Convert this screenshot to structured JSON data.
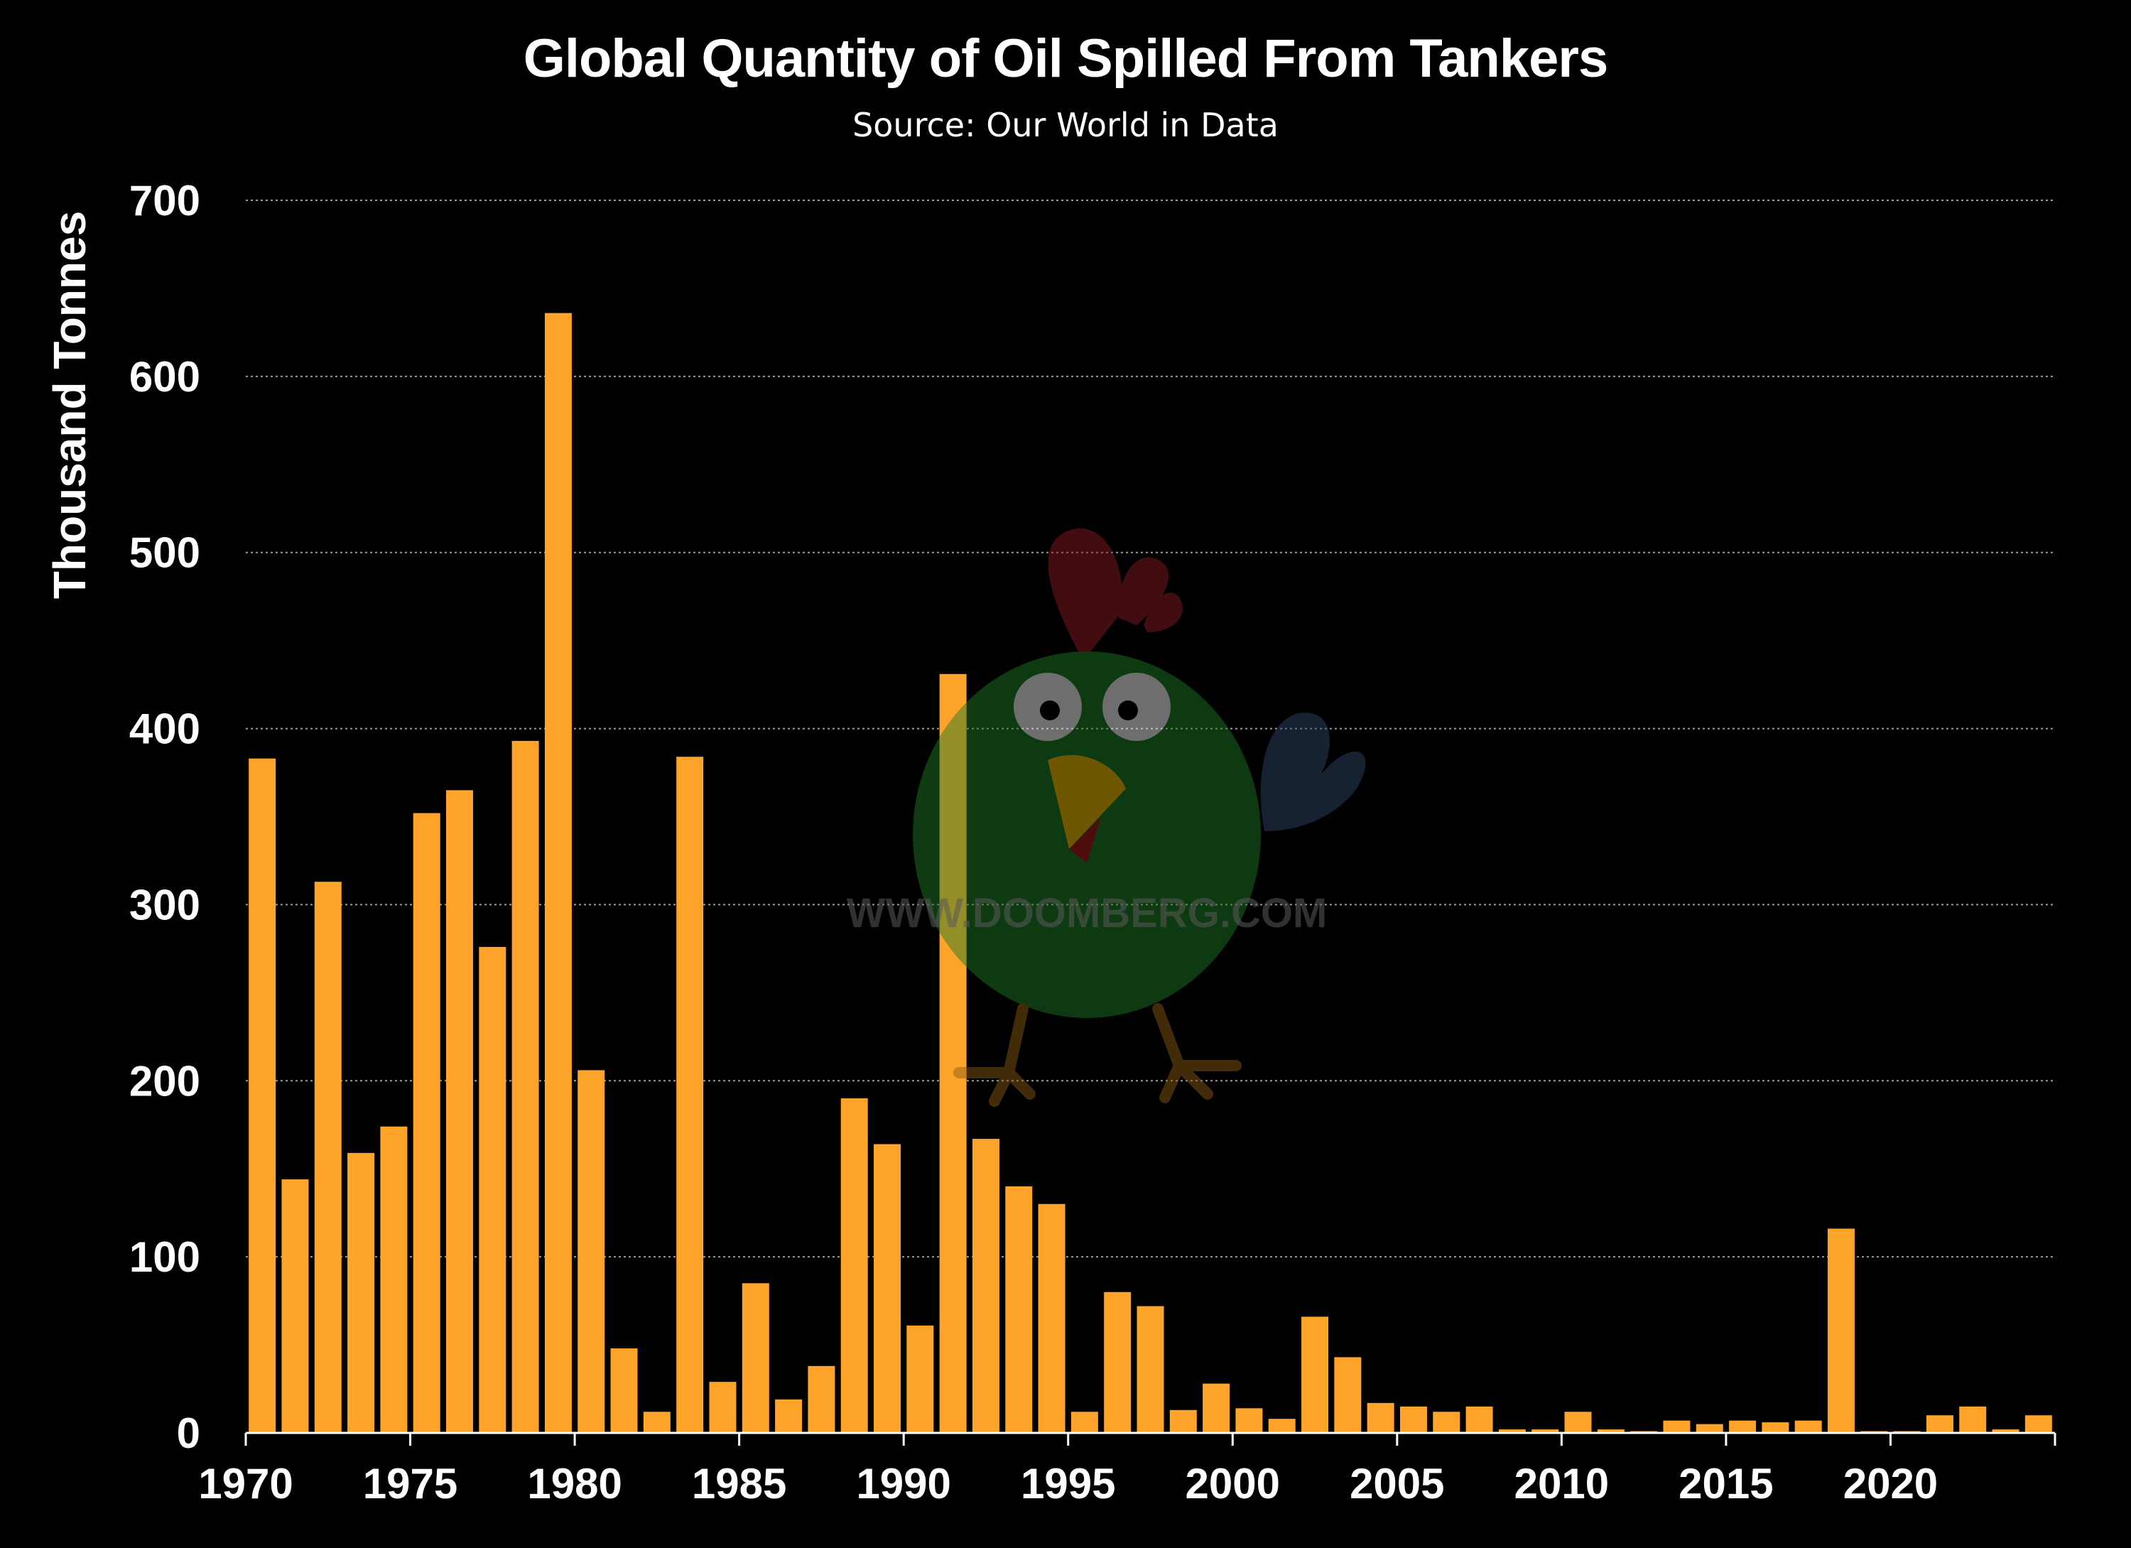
{
  "colors": {
    "background": "#000000",
    "bar": "#FFA42B",
    "text": "#ffffff",
    "grid": "#9a9a9a"
  },
  "watermark": {
    "text": "WWW.DOOMBERG.COM",
    "icon": "doomberg-chicken-logo-icon"
  },
  "chart_data": {
    "type": "bar",
    "title": "Global Quantity of Oil Spilled From Tankers",
    "subtitle": "Source: Our World in Data",
    "xlabel": "",
    "ylabel": "Thousand Tonnes",
    "ylim": [
      0,
      700
    ],
    "yticks": [
      0,
      100,
      200,
      300,
      400,
      500,
      600,
      700
    ],
    "xticks": [
      1970,
      1975,
      1980,
      1985,
      1990,
      1995,
      2000,
      2005,
      2010,
      2015,
      2020
    ],
    "grid": "horizontal dotted",
    "legend": "none",
    "categories": [
      1970,
      1971,
      1972,
      1973,
      1974,
      1975,
      1976,
      1977,
      1978,
      1979,
      1980,
      1981,
      1982,
      1983,
      1984,
      1985,
      1986,
      1987,
      1988,
      1989,
      1990,
      1991,
      1992,
      1993,
      1994,
      1995,
      1996,
      1997,
      1998,
      1999,
      2000,
      2001,
      2002,
      2003,
      2004,
      2005,
      2006,
      2007,
      2008,
      2009,
      2010,
      2011,
      2012,
      2013,
      2014,
      2015,
      2016,
      2017,
      2018,
      2019,
      2020,
      2021,
      2022,
      2023,
      2024
    ],
    "values": [
      383,
      144,
      313,
      159,
      174,
      352,
      365,
      276,
      393,
      636,
      206,
      48,
      12,
      384,
      29,
      85,
      19,
      38,
      190,
      164,
      61,
      431,
      167,
      140,
      130,
      12,
      80,
      72,
      13,
      28,
      14,
      8,
      66,
      43,
      17,
      15,
      12,
      15,
      2,
      2,
      12,
      2,
      1,
      7,
      5,
      7,
      6,
      7,
      116,
      1,
      1,
      10,
      15,
      2,
      10
    ]
  }
}
